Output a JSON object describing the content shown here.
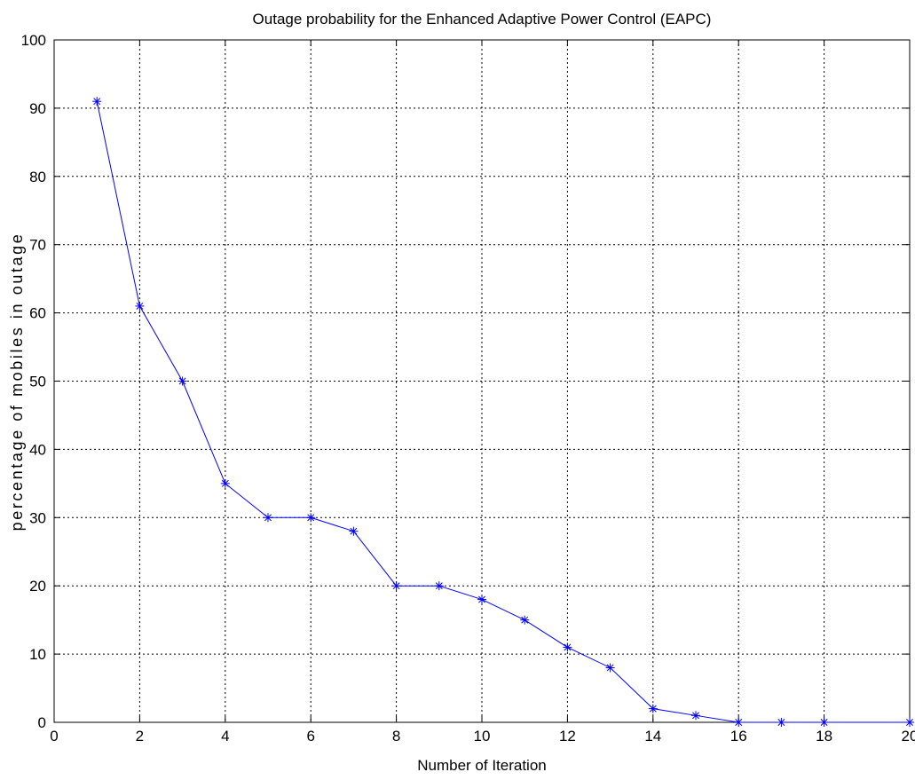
{
  "chart_data": {
    "type": "line",
    "title": "Outage probability for the Enhanced Adaptive Power Control (EAPC)",
    "xlabel": "Number of Iteration",
    "ylabel": "percentage of mobiles in outage",
    "xlim": [
      0,
      20
    ],
    "ylim": [
      0,
      100
    ],
    "xticks": [
      0,
      2,
      4,
      6,
      8,
      10,
      12,
      14,
      16,
      18,
      20
    ],
    "yticks": [
      0,
      10,
      20,
      30,
      40,
      50,
      60,
      70,
      80,
      90,
      100
    ],
    "grid": true,
    "series": [
      {
        "color": "#0000ff",
        "marker": "asterisk",
        "x": [
          1,
          2,
          3,
          4,
          5,
          6,
          7,
          8,
          9,
          10,
          11,
          12,
          13,
          14,
          15,
          16,
          17,
          18,
          20
        ],
        "y": [
          91,
          61,
          50,
          35,
          30,
          30,
          28,
          20,
          20,
          18,
          15,
          11,
          8,
          2,
          1,
          0,
          0,
          0,
          0
        ]
      }
    ]
  }
}
